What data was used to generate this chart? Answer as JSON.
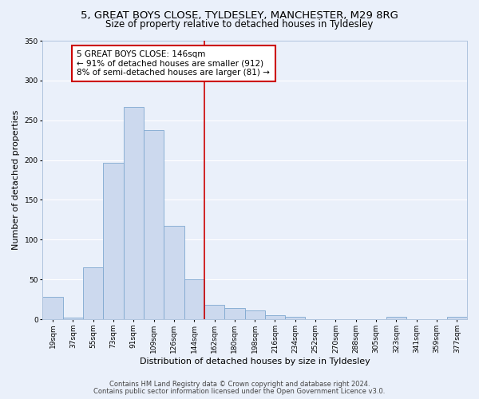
{
  "title1": "5, GREAT BOYS CLOSE, TYLDESLEY, MANCHESTER, M29 8RG",
  "title2": "Size of property relative to detached houses in Tyldesley",
  "xlabel": "Distribution of detached houses by size in Tyldesley",
  "ylabel": "Number of detached properties",
  "bar_labels": [
    "19sqm",
    "37sqm",
    "55sqm",
    "73sqm",
    "91sqm",
    "109sqm",
    "126sqm",
    "144sqm",
    "162sqm",
    "180sqm",
    "198sqm",
    "216sqm",
    "234sqm",
    "252sqm",
    "270sqm",
    "288sqm",
    "305sqm",
    "323sqm",
    "341sqm",
    "359sqm",
    "377sqm"
  ],
  "bar_values": [
    28,
    2,
    65,
    197,
    267,
    238,
    117,
    50,
    18,
    14,
    11,
    5,
    3,
    0,
    0,
    0,
    0,
    3,
    0,
    0,
    3
  ],
  "bar_color": "#ccd9ee",
  "bar_edge_color": "#7fa8d0",
  "vline_color": "#cc0000",
  "annotation_title": "5 GREAT BOYS CLOSE: 146sqm",
  "annotation_line1": "← 91% of detached houses are smaller (912)",
  "annotation_line2": "8% of semi-detached houses are larger (81) →",
  "annotation_box_color": "#ffffff",
  "annotation_box_edge_color": "#cc0000",
  "ylim": [
    0,
    350
  ],
  "yticks": [
    0,
    50,
    100,
    150,
    200,
    250,
    300,
    350
  ],
  "footer1": "Contains HM Land Registry data © Crown copyright and database right 2024.",
  "footer2": "Contains public sector information licensed under the Open Government Licence v3.0.",
  "bg_color": "#eaf0fa",
  "grid_color": "#ffffff",
  "title_fontsize": 9.5,
  "subtitle_fontsize": 8.5,
  "axis_label_fontsize": 8,
  "tick_fontsize": 6.5,
  "annotation_fontsize": 7.5,
  "footer_fontsize": 6
}
